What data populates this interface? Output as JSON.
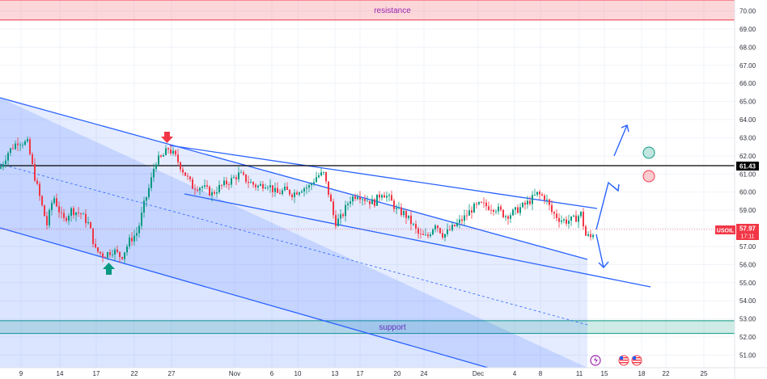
{
  "chart_data": {
    "type": "candlestick",
    "symbol": "USOIL",
    "last_price": "57.97",
    "countdown": "17:11",
    "key_level": "61.43",
    "y_axis_labels": [
      "70.00",
      "69.00",
      "68.00",
      "67.00",
      "66.00",
      "65.00",
      "64.00",
      "63.00",
      "62.00",
      "61.00",
      "60.00",
      "59.00",
      "58.00",
      "57.00",
      "56.00",
      "55.00",
      "54.00",
      "53.00",
      "52.00",
      "51.00"
    ],
    "ylim": [
      50.5,
      70.5
    ],
    "x_axis_labels": [
      "9",
      "14",
      "17",
      "22",
      "27",
      "Nov",
      "6",
      "10",
      "13",
      "17",
      "20",
      "24",
      "Dec",
      "4",
      "8",
      "11",
      "15",
      "18",
      "22",
      "25"
    ],
    "zones": [
      {
        "label": "resistance",
        "from": 69.5,
        "to": 70.6,
        "color": "#f23645"
      },
      {
        "label": "support",
        "from": 52.2,
        "to": 52.9,
        "color": "#089981"
      }
    ],
    "colors": {
      "up": "#089981",
      "down": "#f23645",
      "channel": "#2962ff",
      "price_badge": "#f23645",
      "key_line": "#000000"
    },
    "markers": [
      {
        "name": "down-arrow-icon",
        "color": "#f23645"
      },
      {
        "name": "up-arrow-icon",
        "color": "#089981"
      }
    ],
    "targets": [
      {
        "name": "green-target-circle",
        "value": 62.0,
        "color": "#089981"
      },
      {
        "name": "red-target-circle",
        "value": 60.9,
        "color": "#f23645"
      }
    ],
    "footer_icons": [
      "lightning-icon",
      "us-flag-icon",
      "us-flag-icon"
    ]
  }
}
